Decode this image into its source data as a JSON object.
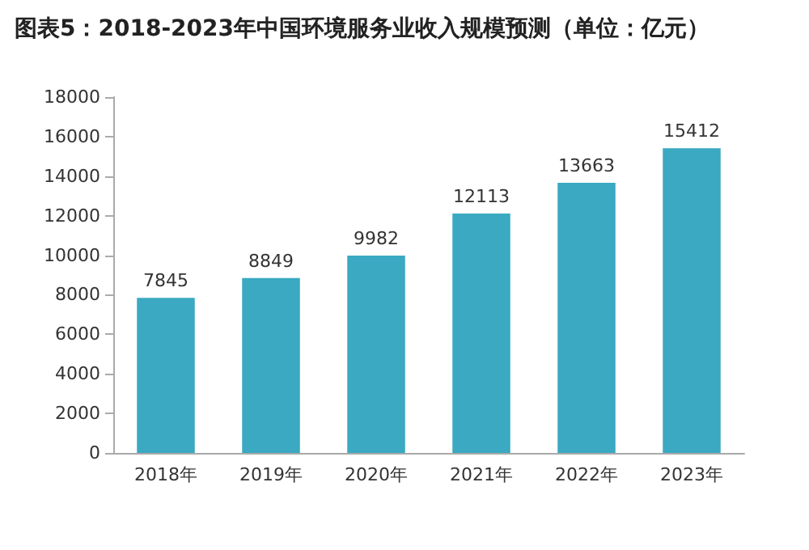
{
  "chart_data": {
    "type": "bar",
    "title": "图表5：2018-2023年中国环境服务业收入规模预测（单位：亿元）",
    "categories": [
      "2018年",
      "2019年",
      "2020年",
      "2021年",
      "2022年",
      "2023年"
    ],
    "values": [
      7845,
      8849,
      9982,
      12113,
      13663,
      15412
    ],
    "color": "#3aa9c1",
    "ylim": [
      0,
      18000
    ],
    "yticks": [
      0,
      2000,
      4000,
      6000,
      8000,
      10000,
      12000,
      14000,
      16000,
      18000
    ],
    "data_labels": true
  }
}
